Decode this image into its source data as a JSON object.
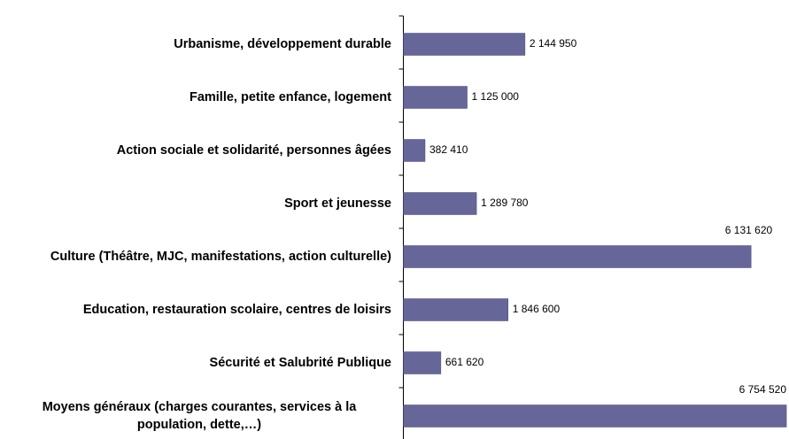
{
  "chart_data": {
    "type": "bar",
    "orientation": "horizontal",
    "categories": [
      "Urbanisme, développement durable",
      "Famille, petite enfance, logement",
      "Action sociale et solidarité, personnes âgées",
      "Sport et jeunesse",
      "Culture (Théâtre, MJC, manifestations, action culturelle)",
      "Education, restauration scolaire, centres de loisirs",
      "Sécurité et Salubrité Publique",
      "Moyens généraux (charges courantes, services à la population, dette,…)"
    ],
    "values": [
      2144950,
      1125000,
      382410,
      1289780,
      6131620,
      1846600,
      661620,
      6754520
    ],
    "value_labels": [
      "2 144 950",
      "1 125 000",
      "382 410",
      "1 289 780",
      "6 131 620",
      "1 846 600",
      "661 620",
      "6 754 520"
    ],
    "color": "#666699",
    "xlim": [
      0,
      6800000
    ]
  }
}
